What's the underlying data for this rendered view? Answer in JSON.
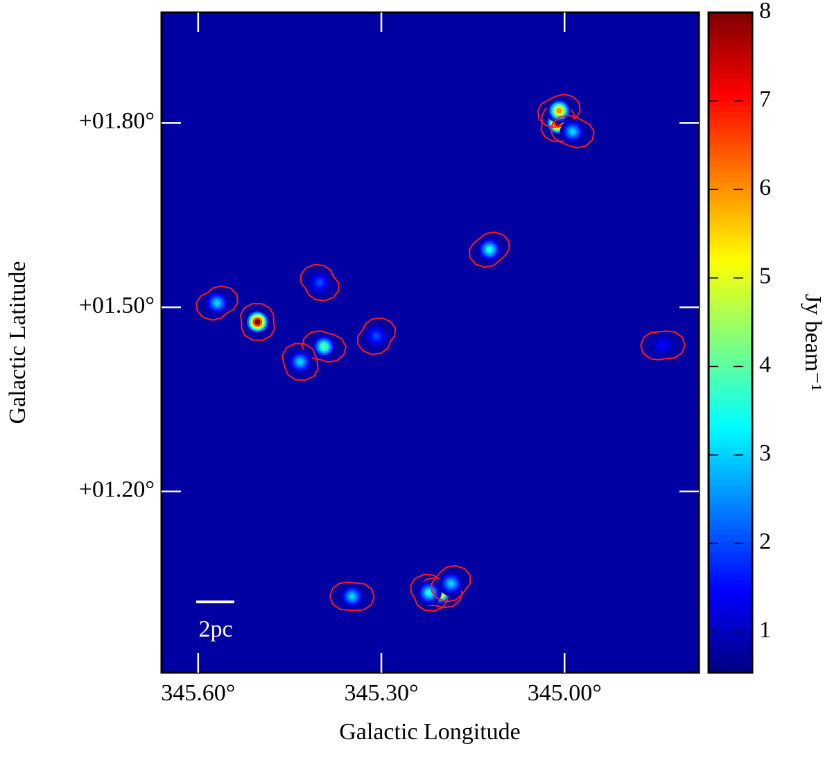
{
  "chart_data": {
    "type": "image",
    "xlabel": "Galactic Longitude",
    "ylabel": "Galactic Latitude",
    "xlim": [
      345.66,
      344.78
    ],
    "ylim": [
      0.905,
      1.98
    ],
    "xticks": [
      {
        "value": 345.6,
        "label": "345.60°"
      },
      {
        "value": 345.3,
        "label": "345.30°"
      },
      {
        "value": 345.0,
        "label": "345.00°"
      }
    ],
    "yticks": [
      {
        "value": 1.8,
        "label": "+01.80°"
      },
      {
        "value": 1.5,
        "label": "+01.50°"
      },
      {
        "value": 1.2,
        "label": "+01.20°"
      }
    ],
    "colorbar": {
      "label": "Jy beam⁻¹",
      "clim": [
        0.54,
        8
      ],
      "ticks": [
        1,
        2,
        3,
        4,
        5,
        6,
        7,
        8
      ]
    },
    "scalebar": "2pc",
    "sources": [
      {
        "l": 345.011,
        "b": 1.8,
        "peak": 8
      },
      {
        "l": 345.009,
        "b": 1.82,
        "peak": 6
      },
      {
        "l": 344.987,
        "b": 1.786,
        "peak": 3
      },
      {
        "l": 345.503,
        "b": 1.476,
        "peak": 8
      },
      {
        "l": 345.569,
        "b": 1.507,
        "peak": 3
      },
      {
        "l": 345.394,
        "b": 1.436,
        "peak": 4
      },
      {
        "l": 345.433,
        "b": 1.411,
        "peak": 3
      },
      {
        "l": 345.123,
        "b": 1.594,
        "peak": 3.5
      },
      {
        "l": 345.204,
        "b": 1.035,
        "peak": 6
      },
      {
        "l": 345.222,
        "b": 1.035,
        "peak": 3.5
      },
      {
        "l": 345.186,
        "b": 1.05,
        "peak": 3
      },
      {
        "l": 345.348,
        "b": 1.029,
        "peak": 3
      },
      {
        "l": 345.401,
        "b": 1.54,
        "peak": 2
      },
      {
        "l": 345.308,
        "b": 1.453,
        "peak": 2
      },
      {
        "l": 344.839,
        "b": 1.438,
        "peak": 1.5
      }
    ]
  }
}
